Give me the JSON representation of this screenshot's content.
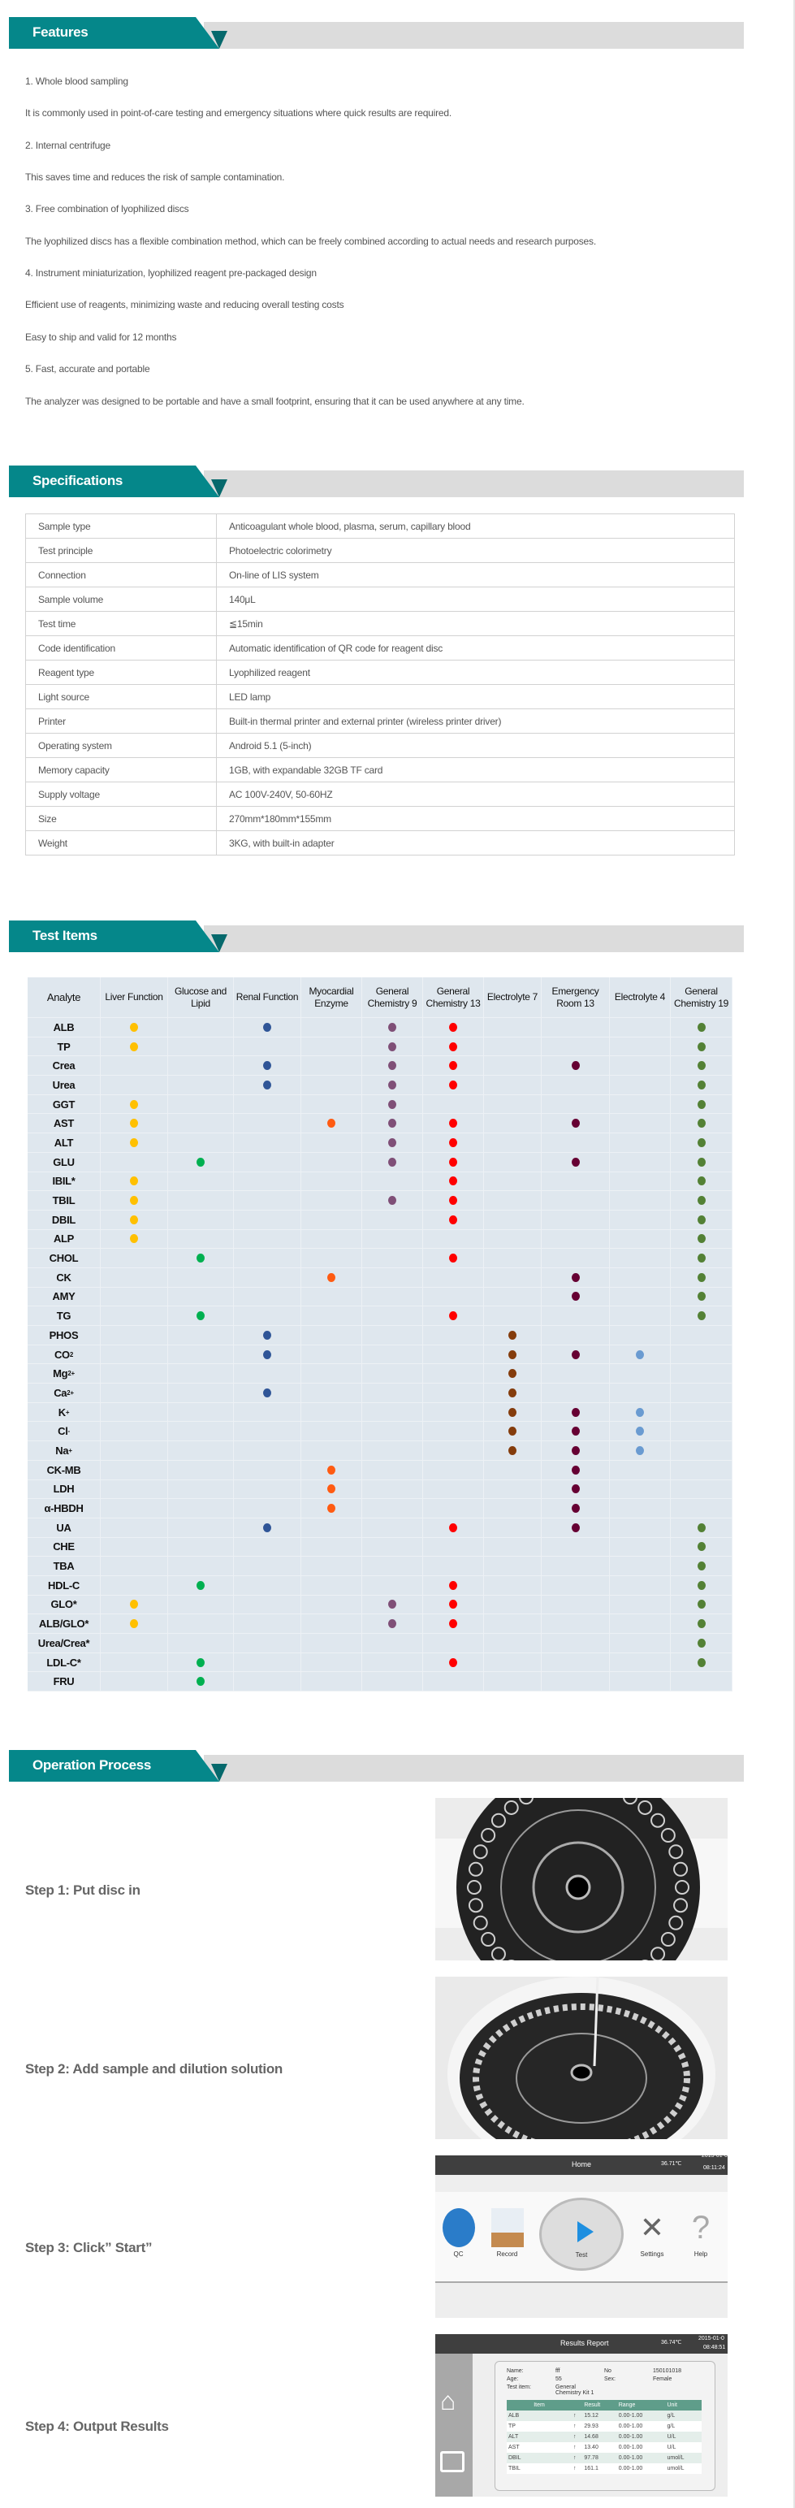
{
  "sections": {
    "features": "Features",
    "specifications": "Specifications",
    "test_items": "Test Items",
    "operation": "Operation Process"
  },
  "features": [
    "1. Whole blood sampling",
    "It is commonly used in point-of-care testing and emergency situations where quick results are required.",
    "2. Internal centrifuge",
    "This saves time and reduces the risk of sample contamination.",
    "3. Free combination of lyophilized discs",
    "The lyophilized discs has a flexible combination method, which can be freely combined according to actual needs and research purposes.",
    "4. Instrument miniaturization, lyophilized reagent pre-packaged design",
    "Efficient use of reagents, minimizing waste and reducing overall testing costs",
    "Easy to ship and valid for 12 months",
    "5. Fast, accurate and portable",
    "The analyzer was designed to be portable and have a small footprint, ensuring that it can be used anywhere at any time."
  ],
  "specs": [
    [
      "Sample type",
      "Anticoagulant whole blood, plasma, serum, capillary blood"
    ],
    [
      "Test principle",
      "Photoelectric colorimetry"
    ],
    [
      "Connection",
      "On-line of LIS system"
    ],
    [
      "Sample volume",
      "140μL"
    ],
    [
      "Test time",
      "≦15min"
    ],
    [
      "Code identification",
      "Automatic identification of QR code for reagent disc"
    ],
    [
      "Reagent type",
      "Lyophilized reagent"
    ],
    [
      "Light source",
      "LED lamp"
    ],
    [
      "Printer",
      "Built-in thermal printer and external printer (wireless printer driver)"
    ],
    [
      "Operating system",
      "Android 5.1 (5-inch)"
    ],
    [
      "Memory capacity",
      "1GB, with expandable 32GB TF card"
    ],
    [
      "Supply voltage",
      "AC 100V-240V, 50-60HZ"
    ],
    [
      "Size",
      "270mm*180mm*155mm"
    ],
    [
      "Weight",
      "3KG, with built-in adapter"
    ]
  ],
  "test_items": {
    "header": "Analyte",
    "columns": [
      {
        "label": "Liver Function",
        "color": "#ffc000"
      },
      {
        "label": "Glucose and Lipid",
        "color": "#00b050"
      },
      {
        "label": "Renal Function",
        "color": "#2f5597"
      },
      {
        "label": "Myocardial Enzyme",
        "color": "#ff5b12"
      },
      {
        "label": "General Chemistry 9",
        "color": "#7f4f77"
      },
      {
        "label": "General Chemistry 13",
        "color": "#ff0000"
      },
      {
        "label": "Electrolyte 7",
        "color": "#843c0c"
      },
      {
        "label": "Emergency Room 13",
        "color": "#660033"
      },
      {
        "label": "Electrolyte 4",
        "color": "#6a9bd1"
      },
      {
        "label": "General Chemistry 19",
        "color": "#538135"
      }
    ],
    "rows": [
      {
        "name": "ALB",
        "cols": [
          0,
          2,
          4,
          5,
          9
        ]
      },
      {
        "name": "TP",
        "cols": [
          0,
          4,
          5,
          9
        ]
      },
      {
        "name": "Crea",
        "cols": [
          2,
          4,
          5,
          7,
          9
        ]
      },
      {
        "name": "Urea",
        "cols": [
          2,
          4,
          5,
          9
        ]
      },
      {
        "name": "GGT",
        "cols": [
          0,
          4,
          9
        ]
      },
      {
        "name": "AST",
        "cols": [
          0,
          3,
          4,
          5,
          7,
          9
        ]
      },
      {
        "name": "ALT",
        "cols": [
          0,
          4,
          5,
          9
        ]
      },
      {
        "name": "GLU",
        "cols": [
          1,
          4,
          5,
          7,
          9
        ]
      },
      {
        "name": "IBIL*",
        "cols": [
          0,
          5,
          9
        ]
      },
      {
        "name": "TBIL",
        "cols": [
          0,
          4,
          5,
          9
        ]
      },
      {
        "name": "DBIL",
        "cols": [
          0,
          5,
          9
        ]
      },
      {
        "name": "ALP",
        "cols": [
          0,
          9
        ]
      },
      {
        "name": "CHOL",
        "cols": [
          1,
          5,
          9
        ]
      },
      {
        "name": "CK",
        "cols": [
          3,
          7,
          9
        ]
      },
      {
        "name": "AMY",
        "cols": [
          7,
          9
        ]
      },
      {
        "name": "TG",
        "cols": [
          1,
          5,
          9
        ]
      },
      {
        "name": "PHOS",
        "cols": [
          2,
          6
        ]
      },
      {
        "name": "CO",
        "sub": "2",
        "cols": [
          2,
          6,
          7,
          8
        ]
      },
      {
        "name": "Mg",
        "sup": "2+",
        "cols": [
          6
        ]
      },
      {
        "name": "Ca",
        "sup": "2+",
        "cols": [
          2,
          6
        ]
      },
      {
        "name": "K",
        "sup": "+",
        "cols": [
          6,
          7,
          8
        ]
      },
      {
        "name": "Cl",
        "sup": "-",
        "cols": [
          6,
          7,
          8
        ]
      },
      {
        "name": "Na",
        "sup": "+",
        "cols": [
          6,
          7,
          8
        ]
      },
      {
        "name": "CK-MB",
        "cols": [
          3,
          7
        ]
      },
      {
        "name": "LDH",
        "cols": [
          3,
          7
        ]
      },
      {
        "name": "α-HBDH",
        "cols": [
          3,
          7
        ]
      },
      {
        "name": "UA",
        "cols": [
          2,
          5,
          7,
          9
        ]
      },
      {
        "name": "CHE",
        "cols": [
          9
        ]
      },
      {
        "name": "TBA",
        "cols": [
          9
        ]
      },
      {
        "name": "HDL-C",
        "cols": [
          1,
          5,
          9
        ]
      },
      {
        "name": "GLO*",
        "cols": [
          0,
          4,
          5,
          9
        ]
      },
      {
        "name": "ALB/GLO*",
        "cols": [
          0,
          4,
          5,
          9
        ]
      },
      {
        "name": "Urea/Crea*",
        "cols": [
          9
        ]
      },
      {
        "name": "LDL-C*",
        "cols": [
          1,
          5,
          9
        ]
      },
      {
        "name": "FRU",
        "cols": [
          1
        ]
      }
    ]
  },
  "steps": [
    "Step 1:  Put disc in",
    "Step 2:  Add sample and dilution solution",
    "Step 3: Click” Start”",
    "Step 4: Output Results"
  ],
  "home_screen": {
    "title": "Home",
    "temp": "36.71℃",
    "date": "2015-01-0",
    "time": "08:11:24",
    "qc": "QC",
    "record": "Record",
    "test": "Test",
    "settings": "Settings",
    "help": "Help"
  },
  "results_screen": {
    "title": "Results Report",
    "temp": "36.74℃",
    "date": "2015-01-0",
    "time": "08:48:51",
    "name_label": "Name:",
    "name": "fff",
    "no_label": "No",
    "no": "150101018",
    "age_label": "Age:",
    "age": "55",
    "sex_label": "Sex:",
    "sex": "Female",
    "test_item_label": "Test item:",
    "test_item": "General Chemistry Kit 1",
    "headers": [
      "Item",
      "Result",
      "Range",
      "Unit"
    ],
    "rows": [
      [
        "ALB",
        "↑",
        "15.12",
        "0.00-1.00",
        "g/L"
      ],
      [
        "TP",
        "↑",
        "29.93",
        "0.00-1.00",
        "g/L"
      ],
      [
        "ALT",
        "↑",
        "14.68",
        "0.00-1.00",
        "U/L"
      ],
      [
        "AST",
        "↑",
        "13.40",
        "0.00-1.00",
        "U/L"
      ],
      [
        "DBIL",
        "↑",
        "97.78",
        "0.00-1.00",
        "umol/L"
      ],
      [
        "TBIL",
        "↑",
        "161.1",
        "0.00-1.00",
        "umol/L"
      ]
    ]
  }
}
